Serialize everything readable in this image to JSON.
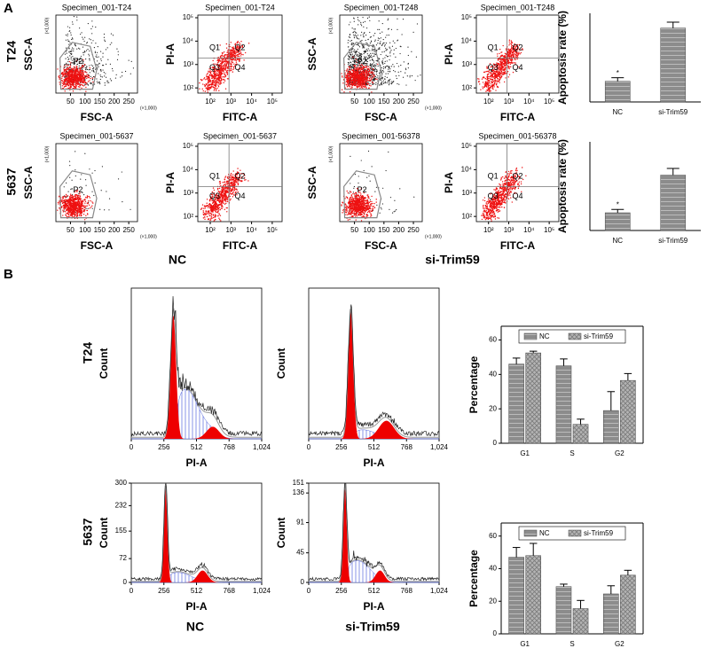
{
  "panel_labels": [
    "A",
    "B"
  ],
  "panel_a": {
    "row_labels": [
      "T24",
      "5637"
    ],
    "group_labels": [
      "NC",
      "si-Trim59"
    ]
  },
  "panel_b": {
    "row_labels": [
      "T24",
      "5637"
    ],
    "group_labels": [
      "NC",
      "si-Trim59"
    ]
  },
  "chart_data": [
    {
      "type": "scatter",
      "title": "Specimen_001-T24",
      "xlabel": "FSC-A",
      "ylabel": "SSC-A",
      "xlim": [
        0,
        280
      ],
      "xticks": [
        50,
        100,
        150,
        200,
        250
      ],
      "x_multiplier": "(×1,000)",
      "y_multiplier": "(×1,000)",
      "gate_labels": [
        "P2"
      ]
    },
    {
      "type": "scatter",
      "title": "Specimen_001-T24",
      "xlabel": "FITC-A",
      "ylabel": "PI-A",
      "log_x": true,
      "log_y": true,
      "xlim": [
        25,
        300000
      ],
      "ylim": [
        60,
        130000
      ],
      "xticks": [
        {
          "value": 100,
          "label": "10²"
        },
        {
          "value": 1000,
          "label": "10³"
        },
        {
          "value": 10000,
          "label": "10⁴"
        },
        {
          "value": 100000,
          "label": "10⁵"
        }
      ],
      "yticks": [
        {
          "value": 100,
          "label": "10²"
        },
        {
          "value": 1000,
          "label": "10³"
        },
        {
          "value": 10000,
          "label": "10⁴"
        },
        {
          "value": 100000,
          "label": "10⁵"
        }
      ],
      "gate_labels": [
        "Q1",
        "Q2",
        "Q3",
        "Q4"
      ]
    },
    {
      "type": "scatter",
      "title": "Specimen_001-T248",
      "xlabel": "FSC-A",
      "ylabel": "SSC-A",
      "xlim": [
        0,
        280
      ],
      "xticks": [
        50,
        100,
        150,
        200,
        250
      ],
      "x_multiplier": "(×1,000)",
      "y_multiplier": "(×1,000)",
      "gate_labels": [
        "P2"
      ]
    },
    {
      "type": "scatter",
      "title": "Specimen_001-T248",
      "xlabel": "FITC-A",
      "ylabel": "PI-A",
      "log_x": true,
      "log_y": true,
      "xlim": [
        25,
        300000
      ],
      "ylim": [
        60,
        130000
      ],
      "xticks": [
        {
          "value": 100,
          "label": "10²"
        },
        {
          "value": 1000,
          "label": "10³"
        },
        {
          "value": 10000,
          "label": "10⁴"
        },
        {
          "value": 100000,
          "label": "10⁵"
        }
      ],
      "yticks": [
        {
          "value": 100,
          "label": "10²"
        },
        {
          "value": 1000,
          "label": "10³"
        },
        {
          "value": 10000,
          "label": "10⁴"
        },
        {
          "value": 100000,
          "label": "10⁵"
        }
      ],
      "gate_labels": [
        "Q1",
        "Q2",
        "Q3",
        "Q4"
      ]
    },
    {
      "type": "bar",
      "ylabel": "Apoptosis rate (%)",
      "categories": [
        "NC",
        "si-Trim59"
      ],
      "values": [
        3.5,
        12.5
      ],
      "errors": [
        0.6,
        1.0
      ],
      "color": "#8c8c8c",
      "ylim": [
        0,
        15
      ],
      "annotation": "*"
    },
    {
      "type": "scatter",
      "title": "Specimen_001-5637",
      "xlabel": "FSC-A",
      "ylabel": "SSC-A",
      "xlim": [
        0,
        280
      ],
      "xticks": [
        50,
        100,
        150,
        200,
        250
      ],
      "x_multiplier": "(×1,000)",
      "y_multiplier": "(×1,000)",
      "gate_labels": [
        "P2"
      ]
    },
    {
      "type": "scatter",
      "title": "Specimen_001-5637",
      "xlabel": "FITC-A",
      "ylabel": "PI-A",
      "log_x": true,
      "log_y": true,
      "xlim": [
        25,
        300000
      ],
      "ylim": [
        60,
        130000
      ],
      "xticks": [
        {
          "value": 100,
          "label": "10²"
        },
        {
          "value": 1000,
          "label": "10³"
        },
        {
          "value": 10000,
          "label": "10⁴"
        },
        {
          "value": 100000,
          "label": "10⁵"
        }
      ],
      "yticks": [
        {
          "value": 100,
          "label": "10²"
        },
        {
          "value": 1000,
          "label": "10³"
        },
        {
          "value": 10000,
          "label": "10⁴"
        },
        {
          "value": 100000,
          "label": "10⁵"
        }
      ],
      "gate_labels": [
        "Q1",
        "Q2",
        "Q3",
        "Q4"
      ]
    },
    {
      "type": "scatter",
      "title": "Specimen_001-56378",
      "xlabel": "FSC-A",
      "ylabel": "SSC-A",
      "xlim": [
        0,
        280
      ],
      "xticks": [
        50,
        100,
        150,
        200,
        250
      ],
      "x_multiplier": "(×1,000)",
      "y_multiplier": "(×1,000)",
      "gate_labels": [
        "P2"
      ]
    },
    {
      "type": "scatter",
      "title": "Specimen_001-56378",
      "xlabel": "FITC-A",
      "ylabel": "PI-A",
      "log_x": true,
      "log_y": true,
      "xlim": [
        25,
        300000
      ],
      "ylim": [
        60,
        130000
      ],
      "xticks": [
        {
          "value": 100,
          "label": "10²"
        },
        {
          "value": 1000,
          "label": "10³"
        },
        {
          "value": 10000,
          "label": "10⁴"
        },
        {
          "value": 100000,
          "label": "10⁵"
        }
      ],
      "yticks": [
        {
          "value": 100,
          "label": "10²"
        },
        {
          "value": 1000,
          "label": "10³"
        },
        {
          "value": 10000,
          "label": "10⁴"
        },
        {
          "value": 100000,
          "label": "10⁵"
        }
      ],
      "gate_labels": [
        "Q1",
        "Q2",
        "Q3",
        "Q4"
      ]
    },
    {
      "type": "bar",
      "ylabel": "Apoptosis rate (%)",
      "categories": [
        "NC",
        "si-Trim59"
      ],
      "values": [
        1.6,
        5.0
      ],
      "errors": [
        0.3,
        0.6
      ],
      "color": "#8c8c8c",
      "ylim": [
        0,
        8
      ],
      "annotation": "*"
    },
    {
      "type": "density",
      "xlabel": "PI-A",
      "ylabel": "Count",
      "xlim": [
        0,
        1024
      ],
      "xticks": [
        0,
        256,
        512,
        768,
        {
          "value": 1024,
          "label": "1,024"
        }
      ]
    },
    {
      "type": "density",
      "xlabel": "PI-A",
      "ylabel": "Count",
      "xlim": [
        0,
        1024
      ],
      "xticks": [
        0,
        256,
        512,
        768,
        {
          "value": 1024,
          "label": "1,024"
        }
      ]
    },
    {
      "type": "bar",
      "ylabel": "Percentage",
      "categories": [
        "G1",
        "S",
        "G2"
      ],
      "ylim": [
        0,
        68
      ],
      "yticks": [
        0,
        20,
        40,
        60
      ],
      "legend": "top",
      "series": [
        {
          "name": "NC",
          "color": "#8c8c8c",
          "values": [
            46,
            45,
            19
          ],
          "errors": [
            3.5,
            4,
            11
          ]
        },
        {
          "name": "si-Trim59",
          "color": "#8c8c8c",
          "values": [
            52.5,
            11,
            36.5
          ],
          "errors": [
            1,
            3,
            4
          ]
        }
      ]
    },
    {
      "type": "density",
      "xlabel": "PI-A",
      "ylabel": "Count",
      "xlim": [
        0,
        1024
      ],
      "ylim": [
        0,
        300
      ],
      "yticks": [
        0,
        72,
        155,
        232,
        300
      ],
      "xticks": [
        0,
        256,
        512,
        768,
        {
          "value": 1024,
          "label": "1,024"
        }
      ]
    },
    {
      "type": "density",
      "xlabel": "PI-A",
      "ylabel": "Count",
      "xlim": [
        0,
        1024
      ],
      "ylim": [
        0,
        151
      ],
      "yticks": [
        0,
        45,
        91,
        136,
        151
      ],
      "xticks": [
        0,
        256,
        512,
        768,
        {
          "value": 1024,
          "label": "1,024"
        }
      ]
    },
    {
      "type": "bar",
      "ylabel": "Percentage",
      "categories": [
        "G1",
        "S",
        "G2"
      ],
      "ylim": [
        0,
        68
      ],
      "yticks": [
        0,
        20,
        40,
        60
      ],
      "legend": "top",
      "series": [
        {
          "name": "NC",
          "color": "#8c8c8c",
          "values": [
            47,
            29,
            24.5
          ],
          "errors": [
            6,
            1.5,
            5
          ]
        },
        {
          "name": "si-Trim59",
          "color": "#8c8c8c",
          "values": [
            48,
            15.5,
            36
          ],
          "errors": [
            7.5,
            5,
            3
          ]
        }
      ]
    }
  ]
}
